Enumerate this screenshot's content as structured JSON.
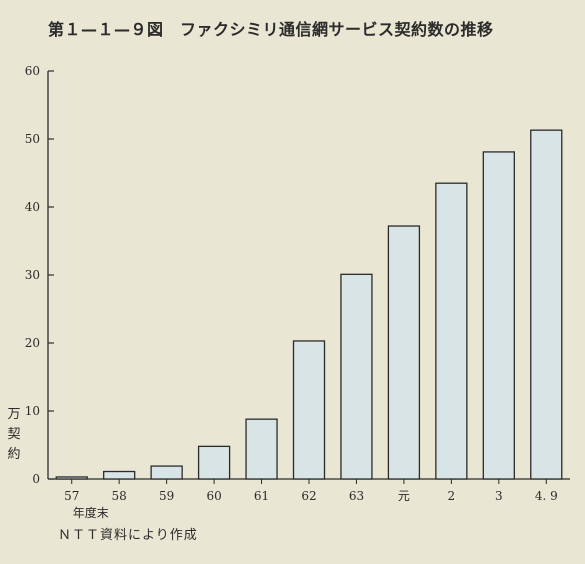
{
  "title": "第１—１—９図　ファクシミリ通信網サービス契約数の推移",
  "source": "ＮＴＴ資料により作成",
  "chart_data": {
    "type": "bar",
    "categories": [
      "57",
      "58",
      "59",
      "60",
      "61",
      "62",
      "63",
      "元",
      "2",
      "3",
      "4. 9"
    ],
    "values": [
      0.3,
      1.1,
      1.9,
      4.8,
      8.8,
      20.3,
      30.1,
      37.2,
      43.5,
      48.1,
      51.3
    ],
    "xlabel": "年度末",
    "ylabel": "万契約",
    "ylim": [
      0,
      60
    ],
    "yticks": [
      0,
      10,
      20,
      30,
      40,
      50,
      60
    ],
    "grid": false,
    "bar_color": "#d9e4e6",
    "bar_edge_color": "#2b2b2b"
  }
}
